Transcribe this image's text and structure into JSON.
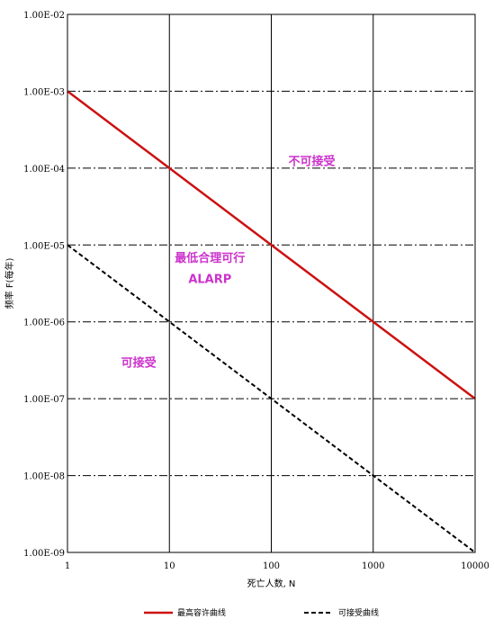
{
  "chart_data": {
    "type": "line",
    "x_scale": "log",
    "y_scale": "log",
    "xlim": [
      1,
      10000
    ],
    "ylim": [
      1e-09,
      0.01
    ],
    "xlabel": "死亡人数, N",
    "ylabel": "频率 F(每年)",
    "grid": true,
    "legend_placement": "bottom",
    "x_ticks": [
      "1",
      "10",
      "100",
      "1000",
      "10000"
    ],
    "y_ticks": [
      "1.00E-09",
      "1.00E-08",
      "1.00E-07",
      "1.00E-06",
      "1.00E-05",
      "1.00E-04",
      "1.00E-03",
      "1.00E-02"
    ],
    "series": [
      {
        "name": "最高容许曲线",
        "x": [
          1,
          10,
          100,
          1000,
          10000
        ],
        "y": [
          0.001,
          0.0001,
          1e-05,
          1e-06,
          1e-07
        ],
        "color": "#cc1111",
        "style": "solid"
      },
      {
        "name": "可接受曲线",
        "x": [
          1,
          10,
          100,
          1000,
          10000
        ],
        "y": [
          1e-05,
          1e-06,
          1e-07,
          1e-08,
          1e-09
        ],
        "color": "#000000",
        "style": "dashed"
      }
    ],
    "annotations": [
      {
        "text": "不可接受",
        "x": 250,
        "y": 0.00011
      },
      {
        "text": "最低合理可行",
        "x": 25,
        "y": 6e-06
      },
      {
        "text": "ALARP",
        "x": 25,
        "y": 3.2e-06
      },
      {
        "text": "可接受",
        "x": 5,
        "y": 2.6e-07
      }
    ]
  }
}
